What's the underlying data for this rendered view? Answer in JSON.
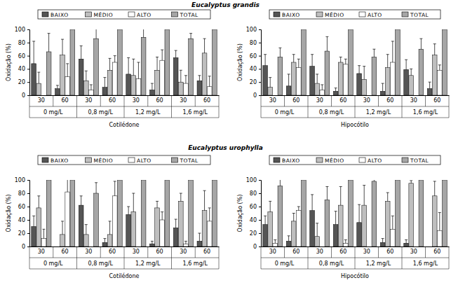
{
  "chart_data": [
    {
      "type": "bar",
      "title": "Eucalyptus grandis",
      "x_label": "Cotilédone",
      "y_label": "Oxidação (%)",
      "categories": [
        "30",
        "60",
        "30",
        "60",
        "30",
        "60",
        "30",
        "60"
      ],
      "groups": [
        "0 mg/L",
        "0,8 mg/L",
        "1,2 mg/L",
        "1,6 mg/L"
      ],
      "series": [
        {
          "name": "BAIXO",
          "color": "#555555",
          "values": [
            48,
            10,
            55,
            12,
            32,
            8,
            57,
            22
          ],
          "errors": [
            34,
            5,
            20,
            15,
            25,
            10,
            11,
            8
          ]
        },
        {
          "name": "MÉDIO",
          "color": "#bfbfbf",
          "values": [
            18,
            61,
            22,
            38,
            30,
            38,
            20,
            64
          ],
          "errors": [
            17,
            24,
            15,
            18,
            25,
            20,
            18,
            22
          ]
        },
        {
          "name": "ALTO",
          "color": "#ffffff",
          "values": [
            0,
            28,
            8,
            50,
            25,
            53,
            18,
            13
          ],
          "errors": [
            null,
            20,
            8,
            10,
            25,
            16,
            12,
            16
          ]
        },
        {
          "name": "TOTAL",
          "color": "#a6a6a6",
          "values": [
            66,
            100,
            86,
            100,
            88,
            100,
            86,
            100
          ],
          "errors": [
            28,
            null,
            17,
            null,
            16,
            null,
            8,
            null
          ]
        }
      ],
      "ylim": [
        0,
        100
      ],
      "yticks": [
        0,
        20,
        40,
        60,
        80,
        100
      ],
      "legend": "top",
      "grid": false
    },
    {
      "type": "bar",
      "x_label": "Hipocótilo",
      "y_label": "Oxidação (%)",
      "categories": [
        "30",
        "60",
        "30",
        "60",
        "30",
        "60",
        "30",
        "60"
      ],
      "groups": [
        "0 mg/L",
        "0,8 mg/L",
        "1,2 mg/L",
        "1,6 mg/L"
      ],
      "series": [
        {
          "name": "BAIXO",
          "color": "#555555",
          "values": [
            45,
            14,
            44,
            6,
            33,
            6,
            39,
            10
          ],
          "errors": [
            17,
            18,
            18,
            5,
            12,
            12,
            15,
            10
          ]
        },
        {
          "name": "MÉDIO",
          "color": "#bfbfbf",
          "values": [
            12,
            50,
            18,
            50,
            24,
            42,
            30,
            61
          ],
          "errors": [
            15,
            12,
            14,
            8,
            20,
            20,
            10,
            17
          ]
        },
        {
          "name": "ALTO",
          "color": "#ffffff",
          "values": [
            0,
            42,
            8,
            47,
            0,
            50,
            0,
            38
          ],
          "errors": [
            null,
            13,
            8,
            8,
            null,
            32,
            null,
            8
          ]
        },
        {
          "name": "TOTAL",
          "color": "#a6a6a6",
          "values": [
            58,
            100,
            67,
            100,
            58,
            100,
            70,
            100
          ],
          "errors": [
            14,
            null,
            22,
            null,
            12,
            null,
            16,
            null
          ]
        }
      ],
      "ylim": [
        0,
        100
      ],
      "yticks": [
        0,
        20,
        40,
        60,
        80,
        100
      ],
      "legend": "top",
      "grid": false
    },
    {
      "type": "bar",
      "title": "Eucalyptus urophylla",
      "x_label": "Cotilédone",
      "y_label": "Oxidação (%)",
      "categories": [
        "30",
        "60",
        "30",
        "60",
        "30",
        "60",
        "30",
        "60"
      ],
      "groups": [
        "0 mg/L",
        "0,8 mg/L",
        "1,2 mg/L",
        "1,6 mg/L"
      ],
      "series": [
        {
          "name": "BAIXO",
          "color": "#555555",
          "values": [
            30,
            0,
            62,
            6,
            48,
            4,
            28,
            8
          ],
          "errors": [
            16,
            null,
            14,
            6,
            12,
            4,
            13,
            12
          ]
        },
        {
          "name": "MÉDIO",
          "color": "#bfbfbf",
          "values": [
            58,
            18,
            18,
            18,
            52,
            58,
            68,
            54
          ],
          "errors": [
            18,
            20,
            15,
            20,
            28,
            10,
            12,
            30
          ]
        },
        {
          "name": "ALTO",
          "color": "#ffffff",
          "values": [
            12,
            82,
            0,
            76,
            0,
            40,
            4,
            38
          ],
          "errors": [
            14,
            20,
            null,
            22,
            null,
            12,
            4,
            20
          ]
        },
        {
          "name": "TOTAL",
          "color": "#a6a6a6",
          "values": [
            100,
            100,
            80,
            100,
            100,
            100,
            100,
            100
          ],
          "errors": [
            null,
            null,
            16,
            null,
            null,
            null,
            null,
            null
          ]
        }
      ],
      "ylim": [
        0,
        100
      ],
      "yticks": [
        0,
        20,
        40,
        60,
        80,
        100
      ],
      "legend": "top",
      "grid": false
    },
    {
      "type": "bar",
      "x_label": "Hipocótilo",
      "y_label": "Oxidação (%)",
      "categories": [
        "30",
        "60",
        "30",
        "60",
        "30",
        "60",
        "30",
        "60"
      ],
      "groups": [
        "0 mg/L",
        "0,8 mg/L",
        "1,2 mg/L",
        "1,6 mg/L"
      ],
      "series": [
        {
          "name": "BAIXO",
          "color": "#555555",
          "values": [
            33,
            8,
            54,
            33,
            36,
            6,
            5,
            0
          ],
          "errors": [
            13,
            8,
            24,
            20,
            27,
            6,
            5,
            null
          ]
        },
        {
          "name": "MÉDIO",
          "color": "#bfbfbf",
          "values": [
            52,
            38,
            15,
            62,
            62,
            68,
            95,
            76
          ],
          "errors": [
            16,
            12,
            20,
            28,
            30,
            13,
            4,
            22
          ]
        },
        {
          "name": "ALTO",
          "color": "#ffffff",
          "values": [
            5,
            54,
            0,
            5,
            0,
            26,
            0,
            24
          ],
          "errors": [
            5,
            6,
            null,
            5,
            null,
            20,
            null,
            27
          ]
        },
        {
          "name": "TOTAL",
          "color": "#a6a6a6",
          "values": [
            91,
            100,
            70,
            100,
            98,
            100,
            100,
            100
          ],
          "errors": [
            12,
            null,
            20,
            null,
            4,
            null,
            null,
            null
          ]
        }
      ],
      "ylim": [
        0,
        100
      ],
      "yticks": [
        0,
        20,
        40,
        60,
        80,
        100
      ],
      "legend": "top",
      "grid": false
    }
  ]
}
